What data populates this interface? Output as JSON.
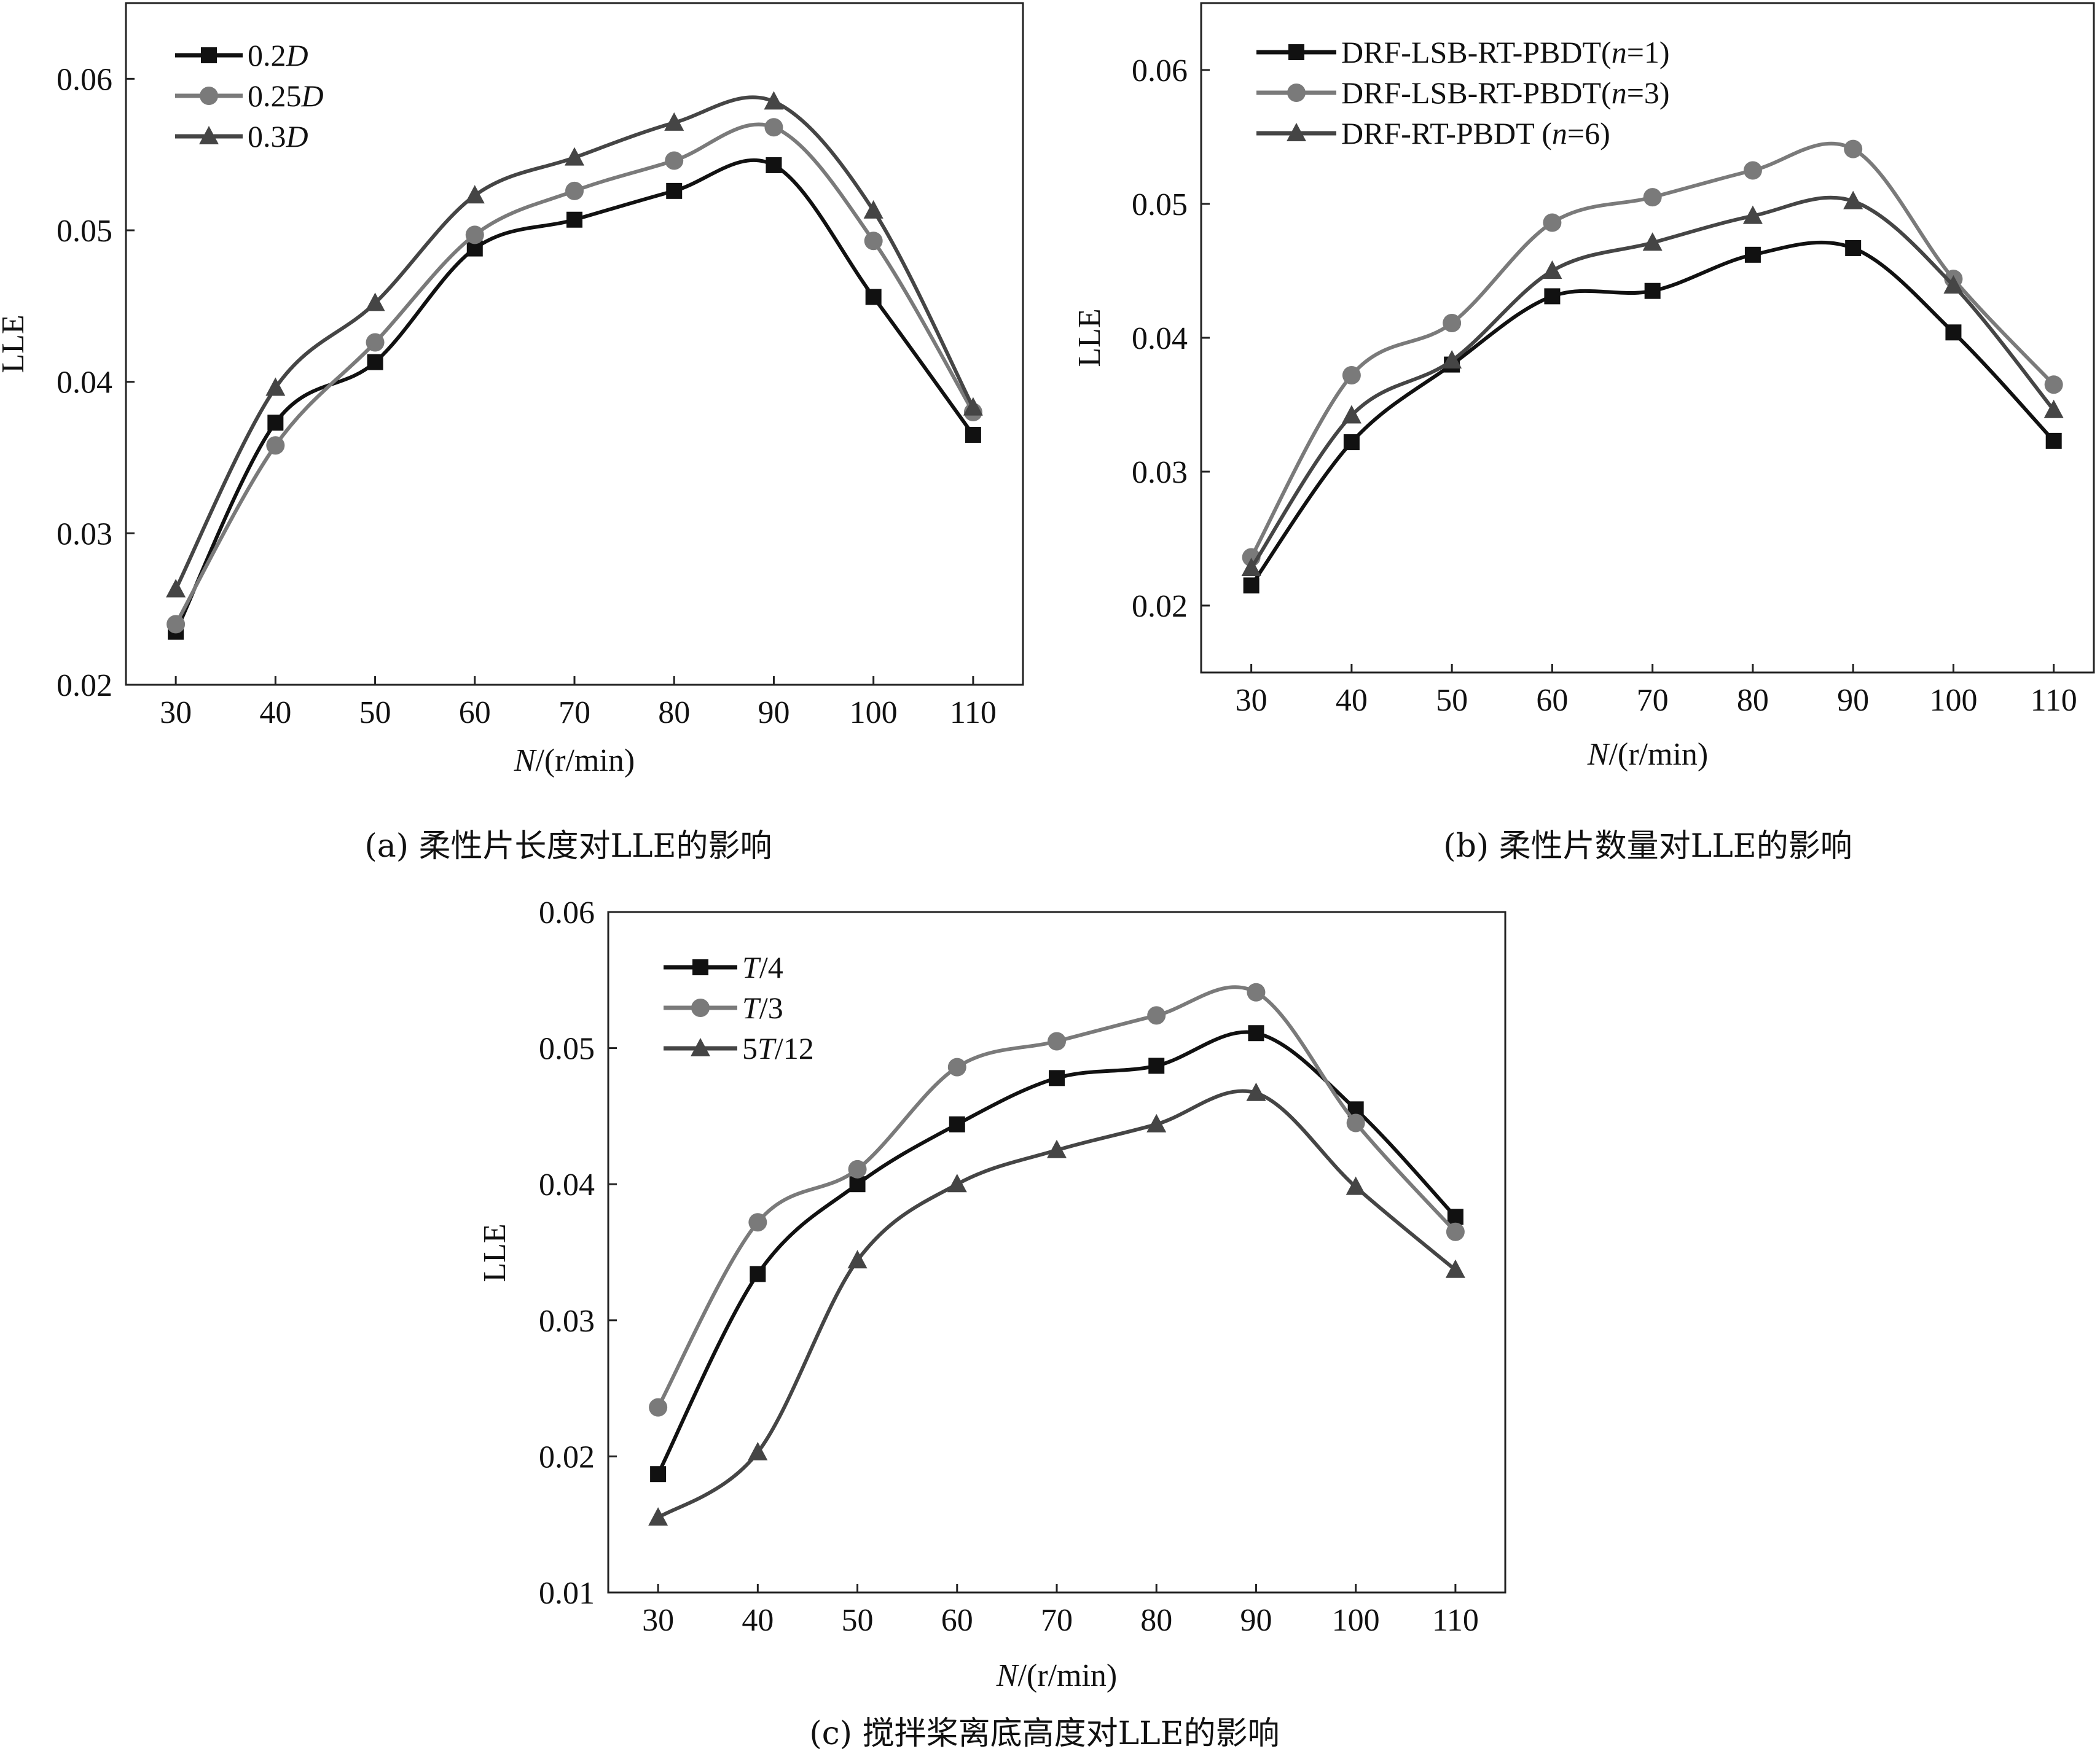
{
  "colors": {
    "series1": "#111111",
    "series2": "#7a7a7a",
    "series3": "#454545"
  },
  "chart_data": [
    {
      "type": "line",
      "caption": "(a) 柔性片长度对LLE的影响",
      "xlabel": "N/(r/min)",
      "ylabel": "LLE",
      "x": [
        30,
        40,
        50,
        60,
        70,
        80,
        90,
        100,
        110
      ],
      "xlim": [
        25,
        115
      ],
      "ylim": [
        0.02,
        0.065
      ],
      "yticks": [
        "0.02",
        "0.03",
        "0.04",
        "0.05",
        "0.06"
      ],
      "yticks_val": [
        0.02,
        0.03,
        0.04,
        0.05,
        0.06
      ],
      "legend_position": "top-left",
      "series": [
        {
          "name": "0.2D",
          "marker": "square",
          "color": "#111111",
          "values": [
            0.0235,
            0.0373,
            0.0413,
            0.0488,
            0.0507,
            0.0526,
            0.0543,
            0.0456,
            0.0365
          ]
        },
        {
          "name": "0.25D",
          "marker": "circle",
          "color": "#7a7a7a",
          "values": [
            0.024,
            0.0358,
            0.0426,
            0.0497,
            0.0526,
            0.0546,
            0.0568,
            0.0493,
            0.038
          ]
        },
        {
          "name": "0.3D",
          "marker": "triangle",
          "color": "#454545",
          "values": [
            0.0263,
            0.0396,
            0.0452,
            0.0523,
            0.0548,
            0.0571,
            0.0585,
            0.0513,
            0.0383
          ]
        }
      ]
    },
    {
      "type": "line",
      "caption": "(b) 柔性片数量对LLE的影响",
      "xlabel": "N/(r/min)",
      "ylabel": "LLE",
      "x": [
        30,
        40,
        50,
        60,
        70,
        80,
        90,
        100,
        110
      ],
      "xlim": [
        25,
        114
      ],
      "ylim": [
        0.015,
        0.065
      ],
      "yticks": [
        "0.02",
        "0.03",
        "0.04",
        "0.05",
        "0.06"
      ],
      "yticks_val": [
        0.02,
        0.03,
        0.04,
        0.05,
        0.06
      ],
      "legend_position": "top-left",
      "series": [
        {
          "name": "DRF-LSB-RT-PBDT(n=1)",
          "marker": "square",
          "color": "#111111",
          "values": [
            0.0215,
            0.0322,
            0.038,
            0.0431,
            0.0435,
            0.0462,
            0.0467,
            0.0404,
            0.0323
          ]
        },
        {
          "name": "DRF-LSB-RT-PBDT(n=3)",
          "marker": "circle",
          "color": "#7a7a7a",
          "values": [
            0.0236,
            0.0372,
            0.0411,
            0.0486,
            0.0505,
            0.0525,
            0.0541,
            0.0444,
            0.0365
          ]
        },
        {
          "name": "DRF-RT-PBDT (n=6)",
          "marker": "triangle",
          "color": "#454545",
          "values": [
            0.0228,
            0.0342,
            0.0383,
            0.045,
            0.0471,
            0.0491,
            0.0502,
            0.0439,
            0.0346
          ]
        }
      ]
    },
    {
      "type": "line",
      "caption": "(c) 搅拌桨离底高度对LLE的影响",
      "xlabel": "N/(r/min)",
      "ylabel": "LLE",
      "x": [
        30,
        40,
        50,
        60,
        70,
        80,
        90,
        100,
        110
      ],
      "xlim": [
        25,
        115
      ],
      "ylim": [
        0.01,
        0.06
      ],
      "yticks": [
        "0.01",
        "0.02",
        "0.03",
        "0.04",
        "0.05",
        "0.06"
      ],
      "yticks_val": [
        0.01,
        0.02,
        0.03,
        0.04,
        0.05,
        0.06
      ],
      "legend_position": "top-left",
      "series": [
        {
          "name": "T/4",
          "marker": "square",
          "color": "#111111",
          "values": [
            0.0187,
            0.0334,
            0.04,
            0.0444,
            0.0478,
            0.0487,
            0.0511,
            0.0455,
            0.0376
          ]
        },
        {
          "name": "T/3",
          "marker": "circle",
          "color": "#7a7a7a",
          "values": [
            0.0236,
            0.0372,
            0.0411,
            0.0486,
            0.0505,
            0.0524,
            0.0541,
            0.0445,
            0.0365
          ]
        },
        {
          "name": "5T/12",
          "marker": "triangle",
          "color": "#454545",
          "values": [
            0.0155,
            0.0203,
            0.0344,
            0.04,
            0.0425,
            0.0444,
            0.0467,
            0.0398,
            0.0337
          ]
        }
      ]
    }
  ]
}
